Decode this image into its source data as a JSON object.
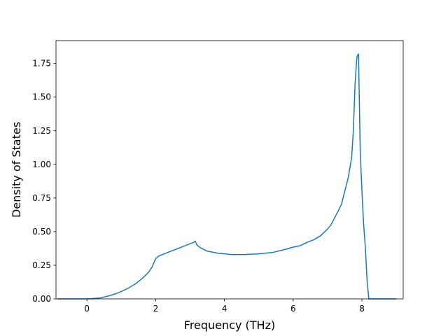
{
  "chart_data": {
    "type": "line",
    "title": "",
    "xlabel": "Frequency (THz)",
    "ylabel": "Density of States",
    "xlim": [
      -0.9,
      9.2
    ],
    "ylim": [
      0,
      1.92
    ],
    "x_ticks": [
      0,
      2,
      4,
      6,
      8
    ],
    "y_ticks": [
      0.0,
      0.25,
      0.5,
      0.75,
      1.0,
      1.25,
      1.5,
      1.75
    ],
    "x_tick_labels": [
      "0",
      "2",
      "4",
      "6",
      "8"
    ],
    "y_tick_labels": [
      "0.00",
      "0.25",
      "0.50",
      "0.75",
      "1.00",
      "1.25",
      "1.50",
      "1.75"
    ],
    "grid": false,
    "legend": "none",
    "line_color": "#1f77b4",
    "series": [
      {
        "x": [
          -0.85,
          0.0,
          0.2,
          0.4,
          0.6,
          0.8,
          1.0,
          1.2,
          1.4,
          1.6,
          1.8,
          1.9,
          2.0,
          2.05,
          2.1,
          2.2,
          2.4,
          2.6,
          2.8,
          3.0,
          3.1,
          3.15,
          3.2,
          3.3,
          3.5,
          3.8,
          4.2,
          4.6,
          5.0,
          5.4,
          5.8,
          6.0,
          6.2,
          6.4,
          6.6,
          6.8,
          7.0,
          7.1,
          7.2,
          7.3,
          7.4,
          7.5,
          7.6,
          7.7,
          7.75,
          7.8,
          7.85,
          7.87,
          7.9,
          7.95,
          8.0,
          8.05,
          8.1,
          8.15,
          8.2,
          9.0
        ],
        "y": [
          0.0,
          0.0,
          0.003,
          0.008,
          0.02,
          0.035,
          0.055,
          0.08,
          0.11,
          0.15,
          0.2,
          0.24,
          0.3,
          0.31,
          0.32,
          0.33,
          0.35,
          0.37,
          0.39,
          0.41,
          0.42,
          0.43,
          0.4,
          0.38,
          0.355,
          0.34,
          0.33,
          0.33,
          0.335,
          0.345,
          0.37,
          0.385,
          0.395,
          0.42,
          0.44,
          0.47,
          0.52,
          0.55,
          0.6,
          0.65,
          0.7,
          0.8,
          0.9,
          1.05,
          1.25,
          1.6,
          1.79,
          1.81,
          1.82,
          1.1,
          0.8,
          0.55,
          0.38,
          0.13,
          0.0,
          0.0
        ]
      }
    ]
  }
}
